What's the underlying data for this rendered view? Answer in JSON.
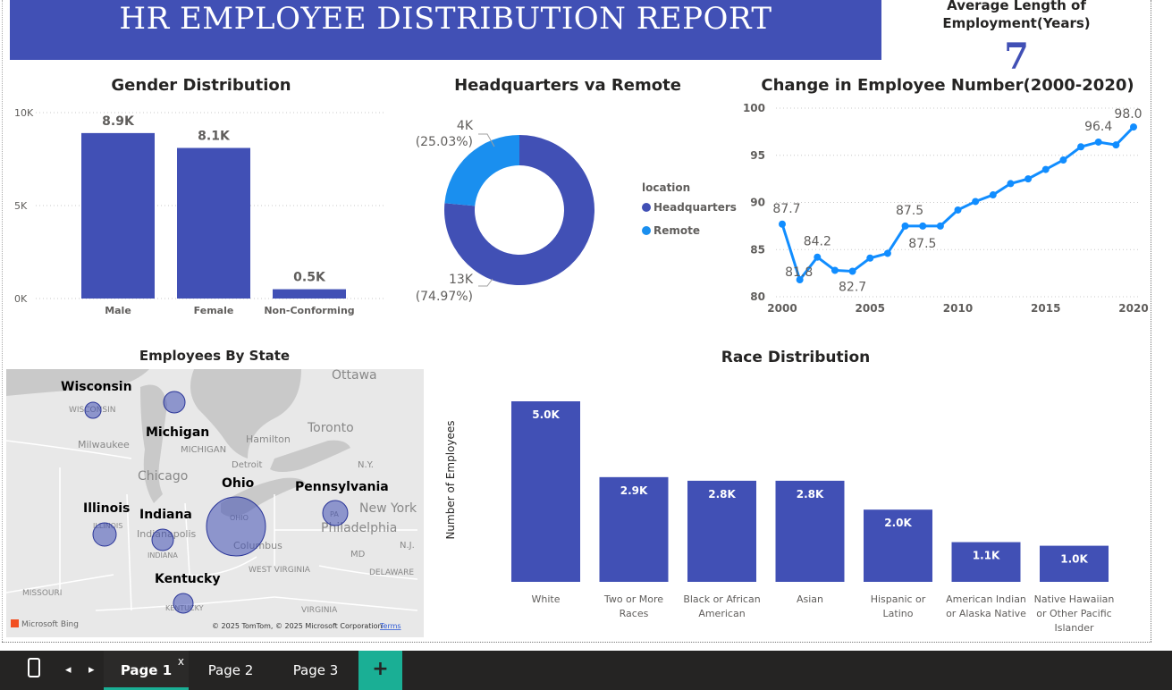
{
  "banner": {
    "title": "HR EMPLOYEE DISTRIBUTION REPORT"
  },
  "kpi": {
    "label_line1": "Average Length of",
    "label_line2": "Employment(Years)",
    "value": "7"
  },
  "gender": {
    "title": "Gender Distribution",
    "chart_data": {
      "type": "bar",
      "categories": [
        "Male",
        "Female",
        "Non-Conforming"
      ],
      "values": [
        8900,
        8100,
        500
      ],
      "data_labels": [
        "8.9K",
        "8.1K",
        "0.5K"
      ],
      "y_ticks": [
        "0K",
        "5K",
        "10K"
      ],
      "ylim": [
        0,
        10000
      ],
      "color": "#4150b5"
    }
  },
  "location": {
    "title": "Headquarters va Remote",
    "legend_title": "location",
    "chart_data": {
      "type": "pie",
      "labels": [
        "Headquarters",
        "Remote"
      ],
      "values": [
        13000,
        4000
      ],
      "percent": [
        74.97,
        25.03
      ],
      "value_labels": [
        "13K",
        "4K"
      ],
      "percent_labels": [
        "(74.97%)",
        "(25.03%)"
      ],
      "colors": [
        "#4150b5",
        "#1a8fef"
      ]
    }
  },
  "trend": {
    "title": "Change in Employee Number(2000-2020)",
    "chart_data": {
      "type": "line",
      "x": [
        2000,
        2001,
        2002,
        2003,
        2004,
        2005,
        2006,
        2007,
        2008,
        2009,
        2010,
        2011,
        2012,
        2013,
        2014,
        2015,
        2016,
        2017,
        2018,
        2019,
        2020
      ],
      "values": [
        87.7,
        81.8,
        84.2,
        82.8,
        82.7,
        84.1,
        84.6,
        87.5,
        87.5,
        87.5,
        89.2,
        90.1,
        90.8,
        92.0,
        92.5,
        93.5,
        94.5,
        95.9,
        96.4,
        96.1,
        98.0
      ],
      "x_ticks": [
        "2000",
        "2005",
        "2010",
        "2015",
        "2020"
      ],
      "y_ticks": [
        "80",
        "85",
        "90",
        "95",
        "100"
      ],
      "ylim": [
        80,
        100
      ],
      "point_labels": [
        {
          "x": 2000,
          "text": "87.7"
        },
        {
          "x": 2001,
          "text": "81.8"
        },
        {
          "x": 2002,
          "text": "84.2"
        },
        {
          "x": 2004,
          "text": "82.7"
        },
        {
          "x": 2007,
          "text": "87.5"
        },
        {
          "x": 2009,
          "text": "87.5"
        },
        {
          "x": 2018,
          "text": "96.4"
        },
        {
          "x": 2020,
          "text": "98.0"
        }
      ],
      "color": "#118dff"
    }
  },
  "map": {
    "title": "Employees By State",
    "state_labels": [
      "Wisconsin",
      "Michigan",
      "Ohio",
      "Pennsylvania",
      "Illinois",
      "Indiana",
      "Kentucky"
    ],
    "basemap_labels": [
      "Ottawa",
      "WISCONSIN",
      "Milwaukee",
      "MICHIGAN",
      "Hamilton",
      "Toronto",
      "Detroit",
      "N.Y.",
      "Chicago",
      "ILLINOIS",
      "Indianapolis",
      "INDIANA",
      "OHIO",
      "Columbus",
      "PA",
      "New York",
      "Philadelphia",
      "N.J.",
      "MD",
      "WEST VIRGINIA",
      "DELAWARE",
      "MISSOURI",
      "KENTUCKY",
      "VIRGINIA"
    ],
    "bubbles": [
      {
        "state": "Wisconsin",
        "size": 1
      },
      {
        "state": "Michigan",
        "size": 2
      },
      {
        "state": "Ohio",
        "size": 14
      },
      {
        "state": "Pennsylvania",
        "size": 2
      },
      {
        "state": "Illinois",
        "size": 2
      },
      {
        "state": "Indiana",
        "size": 2
      },
      {
        "state": "Kentucky",
        "size": 1.5
      }
    ],
    "bing_logo": "Microsoft Bing",
    "copyright": "© 2025 TomTom, © 2025 Microsoft Corporation",
    "terms": "Terms"
  },
  "race": {
    "title": "Race Distribution",
    "chart_data": {
      "type": "bar",
      "categories": [
        [
          "White"
        ],
        [
          "Two or More",
          "Races"
        ],
        [
          "Black or African",
          "American"
        ],
        [
          "Asian"
        ],
        [
          "Hispanic or",
          "Latino"
        ],
        [
          "American Indian",
          "or Alaska Native"
        ],
        [
          "Native Hawaiian",
          "or Other Pacific",
          "Islander"
        ]
      ],
      "values": [
        5000,
        2900,
        2800,
        2800,
        2000,
        1100,
        1000
      ],
      "data_labels": [
        "5.0K",
        "2.9K",
        "2.8K",
        "2.8K",
        "2.0K",
        "1.1K",
        "1.0K"
      ],
      "ylabel": "Number of Employees",
      "color": "#4150b5"
    }
  },
  "taskbar": {
    "tabs": [
      "Page 1",
      "Page 2",
      "Page 3"
    ],
    "active_tab": "Page 1",
    "close_glyph": "x",
    "add_glyph": "+"
  }
}
